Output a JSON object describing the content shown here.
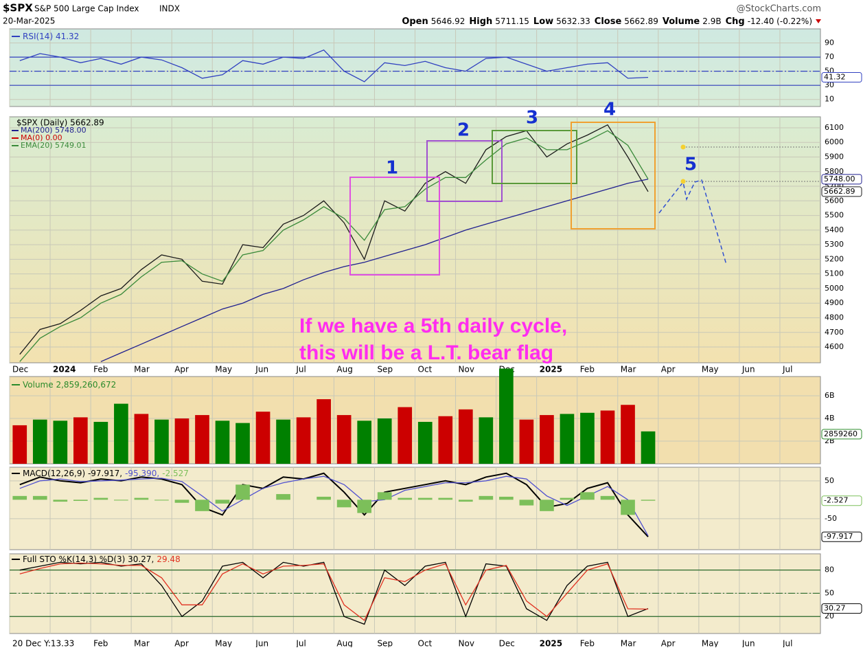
{
  "header": {
    "symbol": "$SPX",
    "name": "S&P 500 Large Cap Index",
    "exchange": "INDX",
    "date": "20-Mar-2025",
    "copyright": "@StockCharts.com",
    "quote": [
      {
        "label": "Open",
        "value": 5646.92
      },
      {
        "label": "High",
        "value": 5711.15
      },
      {
        "label": "Low",
        "value": 5632.33
      },
      {
        "label": "Close",
        "value": 5662.89
      },
      {
        "label": "Volume",
        "value": "2.9B"
      },
      {
        "label": "Chg",
        "value": "-12.40 (-0.22%)"
      }
    ]
  },
  "chart_data": [
    {
      "type": "line",
      "ylim": [
        0,
        110
      ],
      "yticks": [
        10,
        30,
        50,
        70,
        90
      ],
      "ref_lines": [
        {
          "value": 30,
          "style": "solid"
        },
        {
          "value": 50,
          "style": "dashdot"
        },
        {
          "value": 70,
          "style": "solid"
        }
      ],
      "series": [
        {
          "name": "RSI(14) 41.32",
          "color": "#3040c0",
          "tag": "41.32",
          "values": [
            65,
            75,
            70,
            62,
            68,
            60,
            70,
            66,
            55,
            40,
            45,
            65,
            60,
            70,
            68,
            80,
            50,
            35,
            62,
            58,
            64,
            55,
            50,
            68,
            70,
            60,
            50,
            55,
            60,
            62,
            40,
            41.32,
            null,
            null,
            null,
            null,
            null,
            null,
            null,
            null
          ]
        }
      ]
    },
    {
      "type": "line",
      "ylim": [
        4492,
        6175
      ],
      "yticks": [
        4600,
        4700,
        4800,
        4900,
        5000,
        5100,
        5200,
        5300,
        5400,
        5500,
        5600,
        5700,
        5800,
        5900,
        6000,
        6100
      ],
      "categories": [
        "Dec",
        null,
        "2024",
        null,
        "Feb",
        null,
        "Mar",
        null,
        "Apr",
        null,
        "May",
        null,
        "Jun",
        null,
        "Jul",
        null,
        "Aug",
        null,
        "Sep",
        null,
        "Oct",
        null,
        "Nov",
        null,
        "Dec",
        null,
        "2025",
        null,
        "Feb",
        null,
        "Mar",
        null,
        "Apr",
        null,
        "May",
        null,
        "Jun",
        null,
        "Jul",
        null
      ],
      "annotations": [
        "1",
        "2",
        "3",
        "4",
        "5",
        "If we have a 5th daily cycle,",
        "this will be a L.T. bear flag"
      ],
      "series": [
        {
          "name": "$SPX (Daily) 5662.89",
          "color": "#1a1a1a",
          "tag": "5662.89",
          "values": [
            4550,
            4720,
            4760,
            4850,
            4950,
            5000,
            5130,
            5230,
            5200,
            5050,
            5030,
            5300,
            5280,
            5440,
            5500,
            5600,
            5450,
            5200,
            5600,
            5530,
            5720,
            5800,
            5720,
            5950,
            6040,
            6080,
            5900,
            5990,
            6050,
            6120,
            5900,
            5662.89,
            null,
            null,
            null,
            null,
            null,
            null,
            null,
            null
          ]
        },
        {
          "name": "MA(200) 5748.00",
          "color": "#1f1f8f",
          "tag": "5748.00",
          "values": [
            null,
            null,
            null,
            null,
            4500,
            4560,
            4620,
            4680,
            4740,
            4800,
            4860,
            4900,
            4960,
            5000,
            5060,
            5110,
            5150,
            5180,
            5220,
            5260,
            5300,
            5350,
            5400,
            5440,
            5480,
            5520,
            5560,
            5600,
            5640,
            5680,
            5720,
            5748,
            null,
            null,
            null,
            null,
            null,
            null,
            null,
            null
          ]
        },
        {
          "name": "MA(0) 0.00",
          "color": "#cc0000",
          "values": [
            null,
            null,
            null,
            null,
            null,
            null,
            null,
            null,
            null,
            null,
            null,
            null,
            null,
            null,
            null,
            null,
            null,
            null,
            null,
            null,
            null,
            null,
            null,
            null,
            null,
            null,
            null,
            null,
            null,
            null,
            null,
            null,
            null,
            null,
            null,
            null,
            null,
            null,
            null,
            null
          ]
        },
        {
          "name": "EMA(20) 5749.01",
          "color": "#3a8a3a",
          "values": [
            4500,
            4660,
            4740,
            4800,
            4900,
            4960,
            5080,
            5180,
            5190,
            5100,
            5050,
            5230,
            5260,
            5400,
            5470,
            5560,
            5480,
            5330,
            5540,
            5560,
            5680,
            5760,
            5760,
            5880,
            5990,
            6030,
            5950,
            5950,
            6010,
            6080,
            5980,
            5749.01,
            null,
            null,
            null,
            null,
            null,
            null,
            null,
            null
          ]
        }
      ]
    },
    {
      "type": "bar",
      "ylim": [
        0,
        7700000000
      ],
      "yticks": [
        {
          "value": 2000000000,
          "label": "2B"
        },
        {
          "value": 4000000000,
          "label": "4B"
        },
        {
          "value": 6000000000,
          "label": "6B"
        }
      ],
      "series": [
        {
          "name": "Volume 2,859,260,672",
          "color": "#2a8a2a",
          "tag": "2859260",
          "colors": [
            "#cc0000",
            "#008000",
            "#008000",
            "#cc0000",
            "#008000",
            "#008000",
            "#cc0000",
            "#008000",
            "#cc0000",
            "#cc0000",
            "#008000",
            "#008000",
            "#cc0000",
            "#008000",
            "#cc0000",
            "#cc0000",
            "#cc0000",
            "#008000",
            "#008000",
            "#cc0000",
            "#008000",
            "#cc0000",
            "#cc0000",
            "#008000",
            "#008000",
            "#cc0000",
            "#cc0000",
            "#008000",
            "#008000",
            "#cc0000",
            "#cc0000",
            "#008000"
          ],
          "values": [
            3400000000,
            3900000000,
            3800000000,
            4100000000,
            3700000000,
            5300000000,
            4400000000,
            3900000000,
            4000000000,
            4300000000,
            3800000000,
            3600000000,
            4600000000,
            3900000000,
            4100000000,
            5700000000,
            4300000000,
            3800000000,
            4000000000,
            5000000000,
            3700000000,
            4200000000,
            4800000000,
            4100000000,
            8400000000,
            3900000000,
            4300000000,
            4400000000,
            4500000000,
            4700000000,
            5200000000,
            2859260672,
            null,
            null,
            null,
            null,
            null,
            null,
            null,
            null
          ]
        }
      ]
    },
    {
      "type": "line",
      "ylim": [
        -132,
        86
      ],
      "yticks": [
        50,
        -50
      ],
      "series": [
        {
          "name": "MACD(12,26,9) -97.917,",
          "color": "#000000",
          "tag": "-97.917",
          "values": [
            40,
            60,
            50,
            45,
            55,
            50,
            60,
            55,
            40,
            -20,
            -40,
            40,
            30,
            60,
            55,
            70,
            20,
            -40,
            20,
            30,
            40,
            50,
            40,
            60,
            70,
            40,
            -20,
            -10,
            30,
            45,
            -40,
            -97.917,
            null,
            null,
            null,
            null,
            null,
            null,
            null,
            null
          ]
        },
        {
          "name": "-95.390,",
          "color": "#5050d0",
          "values": [
            30,
            50,
            55,
            48,
            50,
            52,
            55,
            57,
            48,
            10,
            -30,
            0,
            30,
            45,
            55,
            62,
            40,
            -5,
            0,
            25,
            35,
            45,
            45,
            50,
            62,
            55,
            10,
            -15,
            10,
            35,
            0,
            -95.39,
            null,
            null,
            null,
            null,
            null,
            null,
            null,
            null
          ]
        },
        {
          "name": "-2.527",
          "type": "bar",
          "color": "#7cbf5a",
          "tag": "-2.527",
          "values": [
            10,
            10,
            -5,
            -3,
            5,
            -2,
            5,
            -2,
            -8,
            -30,
            -10,
            40,
            0,
            15,
            0,
            8,
            -20,
            -35,
            20,
            5,
            5,
            5,
            -5,
            10,
            8,
            -15,
            -30,
            5,
            20,
            10,
            -40,
            -2.527,
            null,
            null,
            null,
            null,
            null,
            null,
            null,
            null
          ]
        }
      ]
    },
    {
      "type": "line",
      "ylim": [
        -2,
        101
      ],
      "yticks": [
        20,
        50,
        80
      ],
      "ref_lines": [
        {
          "value": 20,
          "style": "solid"
        },
        {
          "value": 50,
          "style": "dashdot"
        },
        {
          "value": 80,
          "style": "solid"
        }
      ],
      "categories": [
        "20 Dec Y:13.33",
        null,
        null,
        null,
        "Feb",
        null,
        "Mar",
        null,
        "Apr",
        null,
        "May",
        null,
        "Jun",
        null,
        "Jul",
        null,
        "Aug",
        null,
        "Sep",
        null,
        "Oct",
        null,
        "Nov",
        null,
        "Dec",
        null,
        "2025",
        null,
        "Feb",
        null,
        "Mar",
        null,
        "Apr",
        null,
        "May",
        null,
        "Jun",
        null,
        "Jul",
        null
      ],
      "series": [
        {
          "name": "Full STO %K(14,3) %D(3) 30.27,",
          "color": "#000000",
          "tag": "30.27",
          "values": [
            80,
            85,
            90,
            88,
            90,
            85,
            88,
            60,
            20,
            40,
            85,
            90,
            70,
            90,
            85,
            90,
            20,
            10,
            80,
            60,
            85,
            90,
            20,
            88,
            85,
            30,
            15,
            60,
            85,
            90,
            20,
            30.27,
            null,
            null,
            null,
            null,
            null,
            null,
            null,
            null
          ]
        },
        {
          "name": "29.48",
          "color": "#e03020",
          "values": [
            75,
            82,
            88,
            89,
            88,
            86,
            86,
            70,
            35,
            35,
            75,
            88,
            75,
            85,
            86,
            88,
            35,
            15,
            70,
            65,
            80,
            88,
            35,
            80,
            86,
            40,
            20,
            50,
            80,
            88,
            30,
            29.48,
            null,
            null,
            null,
            null,
            null,
            null,
            null,
            null
          ]
        }
      ]
    }
  ]
}
